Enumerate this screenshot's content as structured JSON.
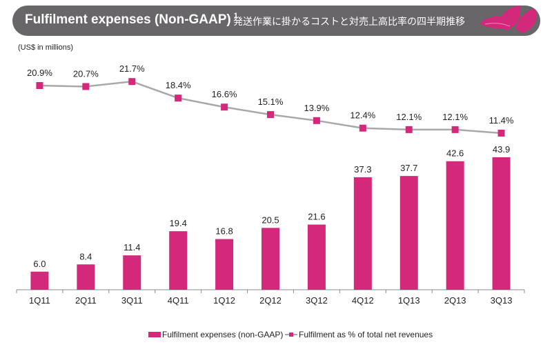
{
  "header": {
    "title": "Fulfilment expenses (Non-GAAP)",
    "footnote": "1",
    "subtitle_ja": "発送作業に掛かるコストと対売上高比率の四半期推移",
    "logo_icon": "lotus-flower-icon"
  },
  "unit_label": "(US$ in millions)",
  "colors": {
    "bar": "#d4297a",
    "line": "#a8a8a8",
    "marker": "#d4297a",
    "header_bg": "#686669"
  },
  "chart_data": {
    "type": "bar",
    "title": "Fulfilment expenses (Non-GAAP)",
    "ylabel": "US$ in millions",
    "xlabel": "",
    "categories": [
      "1Q11",
      "2Q11",
      "3Q11",
      "4Q11",
      "1Q12",
      "2Q12",
      "3Q12",
      "4Q12",
      "1Q13",
      "2Q13",
      "3Q13"
    ],
    "series": [
      {
        "name": "Fulfilment expenses (non-GAAP)",
        "type": "bar",
        "values": [
          6.0,
          8.4,
          11.4,
          19.4,
          16.8,
          20.5,
          21.6,
          37.3,
          37.7,
          42.6,
          43.9
        ],
        "labels": [
          "6.0",
          "8.4",
          "11.4",
          "19.4",
          "16.8",
          "20.5",
          "21.6",
          "37.3",
          "37.7",
          "42.6",
          "43.9"
        ]
      },
      {
        "name": "Fulfilment as % of total net revenues",
        "type": "line",
        "values": [
          20.9,
          20.7,
          21.7,
          18.4,
          16.6,
          15.1,
          13.9,
          12.4,
          12.1,
          12.1,
          11.4
        ],
        "labels": [
          "20.9%",
          "20.7%",
          "21.7%",
          "18.4%",
          "16.6%",
          "15.1%",
          "13.9%",
          "12.4%",
          "12.1%",
          "12.1%",
          "11.4%"
        ]
      }
    ],
    "ylim_bar": [
      0,
      44
    ],
    "ylim_line": [
      11,
      22
    ],
    "grid": false,
    "legend_position": "bottom"
  },
  "legend": {
    "bar_label": "Fulfilment expenses (non-GAAP)",
    "line_label": "Fulfilment as % of total net revenues"
  }
}
